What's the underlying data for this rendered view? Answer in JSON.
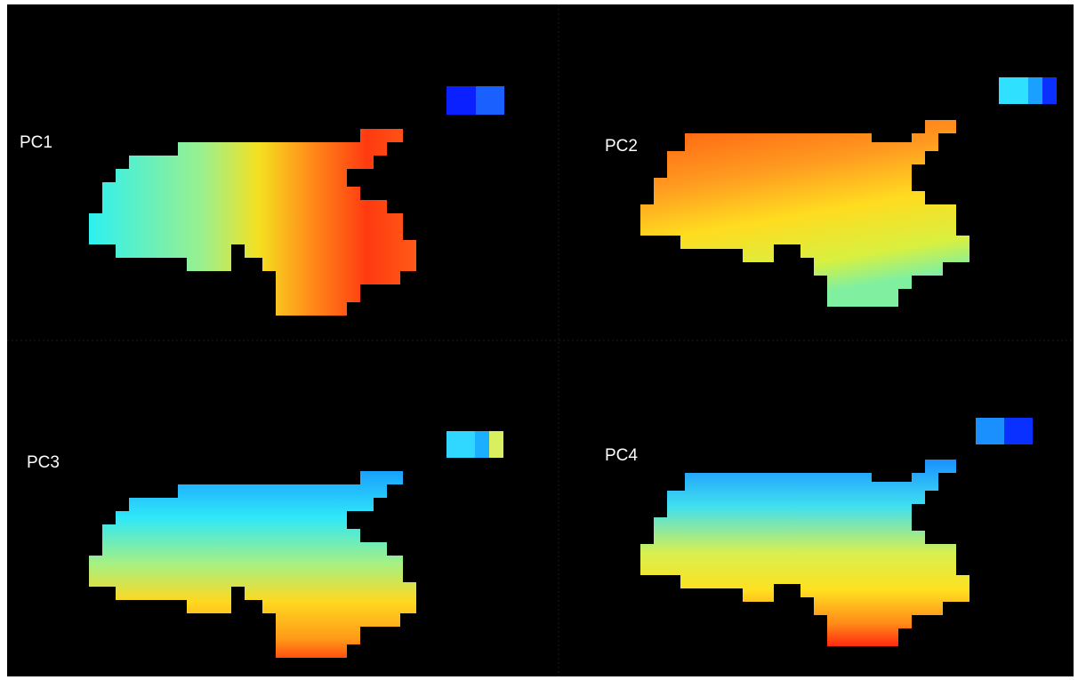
{
  "panels": [
    {
      "label": "PC1"
    },
    {
      "label": "PC2"
    },
    {
      "label": "PC3"
    },
    {
      "label": "PC4"
    }
  ]
}
